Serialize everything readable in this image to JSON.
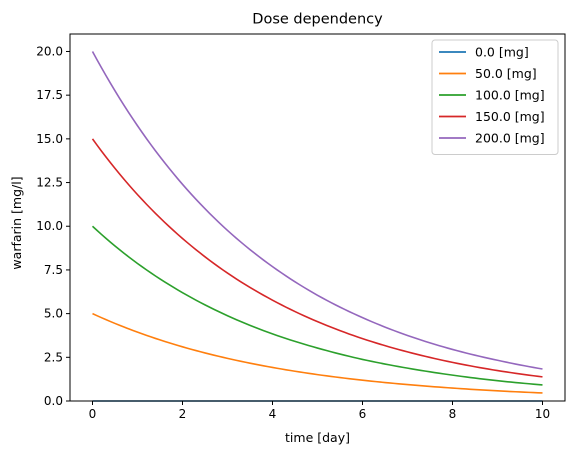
{
  "chart_data": {
    "type": "line",
    "title": "Dose dependency",
    "xlabel": "time [day]",
    "ylabel": "warfarin [mg/l]",
    "xlim": [
      -0.5,
      10.5
    ],
    "ylim": [
      0,
      21
    ],
    "x_ticks": [
      0,
      2,
      4,
      6,
      8,
      10
    ],
    "x_tick_labels": [
      "0",
      "2",
      "4",
      "6",
      "8",
      "10"
    ],
    "y_ticks": [
      0,
      2.5,
      5,
      7.5,
      10,
      12.5,
      15,
      17.5,
      20
    ],
    "y_tick_labels": [
      "0.0",
      "2.5",
      "5.0",
      "7.5",
      "10.0",
      "12.5",
      "15.0",
      "17.5",
      "20.0"
    ],
    "grid": false,
    "legend_position": "top-right",
    "x": [
      0,
      1,
      2,
      3,
      4,
      5,
      6,
      7,
      8,
      9,
      10
    ],
    "series": [
      {
        "name": "0.0 [mg]",
        "color": "#1f77b4",
        "values": [
          0,
          0,
          0,
          0,
          0,
          0,
          0,
          0,
          0,
          0,
          0
        ]
      },
      {
        "name": "50.0 [mg]",
        "color": "#ff7f0e",
        "values": [
          5.0,
          3.94,
          3.1,
          2.44,
          1.92,
          1.51,
          1.19,
          0.94,
          0.74,
          0.58,
          0.46
        ]
      },
      {
        "name": "100.0 [mg]",
        "color": "#2ca02c",
        "values": [
          10.0,
          7.87,
          6.2,
          4.88,
          3.84,
          3.03,
          2.38,
          1.88,
          1.48,
          1.16,
          0.92
        ]
      },
      {
        "name": "150.0 [mg]",
        "color": "#d62728",
        "values": [
          15.0,
          11.81,
          9.3,
          7.32,
          5.77,
          4.54,
          3.57,
          2.81,
          2.21,
          1.74,
          1.38
        ]
      },
      {
        "name": "200.0 [mg]",
        "color": "#9467bd",
        "values": [
          20.0,
          15.75,
          12.4,
          9.76,
          7.69,
          6.05,
          4.77,
          3.75,
          2.95,
          2.33,
          1.83
        ]
      }
    ]
  }
}
